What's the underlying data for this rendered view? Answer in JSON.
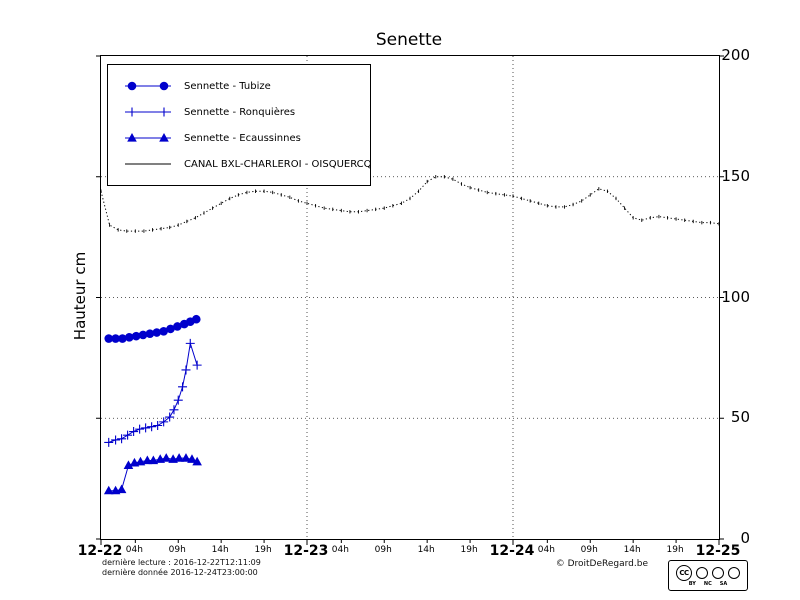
{
  "title": "Senette",
  "footer": {
    "line1": "dernière lecture : 2016-12-22T12:11:09",
    "line2": "dernière donnée  2016-12-24T23:00:00",
    "copyright": "© DroitDeRegard.be"
  },
  "cc": {
    "logo": "CC",
    "terms": [
      "BY",
      "NC",
      "SA"
    ]
  },
  "colors": {
    "series_blue": "#0000cc",
    "canal_black": "#000000"
  },
  "chart_data": {
    "type": "line",
    "title": "Senette",
    "ylabel": "Hauteur cm",
    "xlim_hours": [
      0,
      72
    ],
    "ylim": [
      0,
      200
    ],
    "y_ticks": [
      0,
      50,
      100,
      150,
      200
    ],
    "x_major_labels": [
      "12-22",
      "12-23",
      "12-24",
      "12-25"
    ],
    "x_major_hours": [
      0,
      24,
      48,
      72
    ],
    "x_minor_labels": [
      "04h",
      "09h",
      "14h",
      "19h"
    ],
    "x_minor_base_hours": [
      4,
      9,
      14,
      19
    ],
    "grid_h_values": [
      50,
      100,
      150
    ],
    "grid_v_hours": [
      24,
      48
    ],
    "legend_position": "upper-left",
    "series": [
      {
        "name": "Sennette - Tubize",
        "marker": "circle",
        "color": "#0000cc",
        "line": "solid",
        "x": [
          0.9,
          1.7,
          2.5,
          3.3,
          4.1,
          4.9,
          5.7,
          6.5,
          7.3,
          8.1,
          8.9,
          9.7,
          10.4,
          11.1
        ],
        "y": [
          83,
          83,
          83,
          83.5,
          84,
          84.5,
          85,
          85.5,
          86,
          87,
          88,
          89,
          90,
          91
        ]
      },
      {
        "name": "Sennette - Ronquières",
        "marker": "plus",
        "color": "#0000cc",
        "line": "solid",
        "x": [
          0.9,
          1.7,
          2.4,
          3.1,
          3.8,
          4.5,
          5.2,
          5.9,
          6.6,
          7.3,
          8.0,
          8.5,
          9.0,
          9.5,
          9.9,
          10.4,
          11.2
        ],
        "y": [
          40,
          41,
          41.5,
          43,
          44.5,
          45.5,
          46,
          46.5,
          47,
          48.5,
          50.5,
          53.5,
          57.5,
          63,
          70,
          81,
          72
        ]
      },
      {
        "name": "Sennette - Ecaussinnes",
        "marker": "triangle",
        "color": "#0000cc",
        "line": "solid",
        "x": [
          0.9,
          1.7,
          2.4,
          3.2,
          3.9,
          4.6,
          5.4,
          6.1,
          6.9,
          7.6,
          8.4,
          9.1,
          9.9,
          10.6,
          11.2
        ],
        "y": [
          20,
          20,
          20.5,
          30.5,
          31.5,
          32,
          32.5,
          32.5,
          33,
          33.5,
          33,
          33.5,
          33.5,
          33,
          32
        ]
      },
      {
        "name": "CANAL BXL-CHARLEROI - OISQUERCQ",
        "marker": "tick",
        "color": "#000000",
        "line": "dotted",
        "x_start": 0,
        "x_step": 1,
        "y": [
          144,
          130,
          128,
          127.5,
          127.5,
          127.5,
          128,
          128.5,
          129,
          130,
          131.5,
          133,
          135,
          137,
          139,
          141,
          142.5,
          143.5,
          144,
          144,
          143.5,
          142.5,
          141.5,
          140,
          139,
          138,
          137,
          136.5,
          136,
          135.5,
          135.5,
          136,
          136.5,
          137,
          138,
          139,
          141,
          144,
          148,
          150,
          150,
          149,
          147,
          145.5,
          144.5,
          143.5,
          143,
          142.5,
          142,
          141,
          140,
          139,
          138,
          137.5,
          137.5,
          138.5,
          140,
          142.5,
          145,
          144,
          141,
          137,
          133,
          132,
          133,
          133.5,
          133,
          132.5,
          132,
          131.5,
          131,
          131,
          130.5
        ]
      }
    ]
  }
}
